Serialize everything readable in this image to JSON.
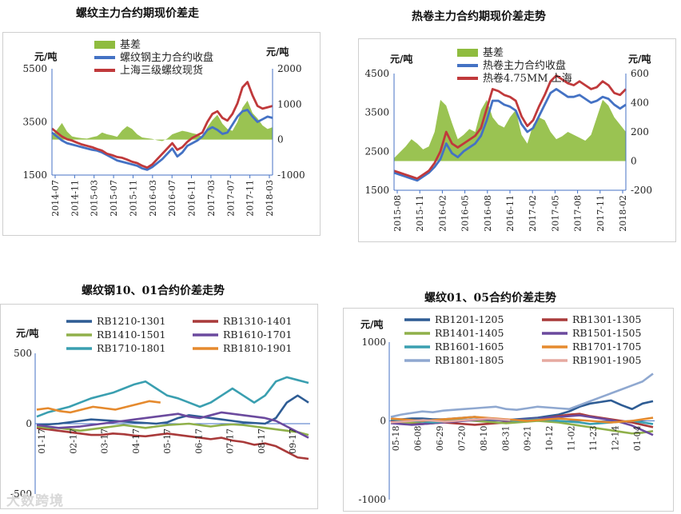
{
  "chart_data": [
    {
      "type": "line",
      "title": "螺纹主力合约期现价差走",
      "left_unit": "元/吨",
      "right_unit": "元/吨",
      "ylim": [
        1500,
        5500
      ],
      "yticks": [
        1500,
        3500,
        5500
      ],
      "y2lim": [
        -1000,
        2000
      ],
      "y2ticks": [
        -1000,
        0,
        1000,
        2000
      ],
      "xlabels": [
        "2014-07",
        "2014-11",
        "2015-03",
        "2015-07",
        "2015-11",
        "2016-03",
        "2016-07",
        "2016-11",
        "2017-03",
        "2017-07",
        "2017-11",
        "2018-03"
      ],
      "legend": [
        "基差",
        "螺纹钢主力合约收盘",
        "上海三级螺纹现货"
      ],
      "colors": [
        "#8fbc3f",
        "#4472c4",
        "#c0393b"
      ],
      "bar_series": {
        "name": "基差",
        "axis": "right",
        "values": [
          120,
          280,
          470,
          230,
          90,
          60,
          40,
          30,
          70,
          100,
          200,
          150,
          120,
          80,
          260,
          380,
          300,
          150,
          60,
          40,
          20,
          -20,
          -40,
          30,
          150,
          200,
          250,
          220,
          180,
          150,
          80,
          350,
          550,
          700,
          450,
          300,
          250,
          500,
          900,
          1100,
          750,
          600,
          400,
          300,
          350
        ]
      },
      "series": [
        {
          "name": "螺纹钢主力合约收盘",
          "axis": "left",
          "values": [
            3100,
            2950,
            2800,
            2700,
            2650,
            2600,
            2550,
            2500,
            2450,
            2420,
            2350,
            2250,
            2150,
            2050,
            2000,
            1950,
            1900,
            1850,
            1750,
            1700,
            1800,
            1950,
            2100,
            2300,
            2500,
            2200,
            2350,
            2600,
            2700,
            2800,
            2950,
            3200,
            3300,
            3200,
            3050,
            3100,
            3400,
            3700,
            3900,
            3950,
            3700,
            3500,
            3600,
            3700,
            3650
          ]
        },
        {
          "name": "上海三级螺纹现货",
          "axis": "left",
          "values": [
            3250,
            3100,
            2950,
            2850,
            2800,
            2720,
            2650,
            2600,
            2550,
            2480,
            2420,
            2300,
            2250,
            2180,
            2150,
            2080,
            2000,
            1950,
            1850,
            1780,
            1900,
            2100,
            2300,
            2500,
            2700,
            2450,
            2550,
            2750,
            2900,
            3000,
            3100,
            3500,
            3800,
            3900,
            3650,
            3550,
            3800,
            4200,
            4800,
            5000,
            4500,
            4100,
            4000,
            4050,
            4100
          ]
        }
      ]
    },
    {
      "type": "line",
      "title": "热卷主力合约期现价差走势",
      "left_unit": "元/吨",
      "right_unit": "元/吨",
      "ylim": [
        1500,
        4500
      ],
      "yticks": [
        1500,
        2500,
        3500,
        4500
      ],
      "y2lim": [
        -200,
        600
      ],
      "y2ticks": [
        -200,
        0,
        200,
        400,
        600
      ],
      "xlabels": [
        "2015-08",
        "2015-11",
        "2016-02",
        "2016-05",
        "2016-08",
        "2016-11",
        "2017-02",
        "2017-05",
        "2017-08",
        "2017-11",
        "2018-02"
      ],
      "legend": [
        "基差",
        "热卷主力合约收盘",
        "热卷4.75MM 上海"
      ],
      "colors": [
        "#8fbc3f",
        "#4472c4",
        "#c0393b"
      ],
      "bar_series": {
        "name": "基差",
        "axis": "right",
        "values": [
          20,
          60,
          100,
          150,
          120,
          80,
          100,
          200,
          420,
          380,
          260,
          150,
          180,
          220,
          200,
          350,
          420,
          300,
          250,
          230,
          300,
          350,
          180,
          120,
          250,
          300,
          280,
          200,
          150,
          170,
          200,
          180,
          160,
          140,
          180,
          300,
          420,
          380,
          300,
          250,
          200
        ]
      },
      "series": [
        {
          "name": "热卷主力合约收盘",
          "axis": "left",
          "values": [
            1950,
            1900,
            1850,
            1800,
            1750,
            1850,
            1950,
            2100,
            2300,
            2700,
            2450,
            2350,
            2500,
            2600,
            2700,
            2900,
            3300,
            3800,
            3800,
            3700,
            3650,
            3550,
            3200,
            3000,
            3100,
            3400,
            3700,
            4000,
            4100,
            4000,
            3900,
            3900,
            3950,
            3850,
            3750,
            3800,
            3900,
            3850,
            3700,
            3600,
            3700
          ]
        },
        {
          "name": "热卷4.75MM 上海",
          "axis": "left",
          "values": [
            2000,
            1950,
            1900,
            1850,
            1800,
            1900,
            2000,
            2200,
            2500,
            3000,
            2700,
            2600,
            2700,
            2800,
            2900,
            3100,
            3600,
            4100,
            4050,
            3950,
            3900,
            3800,
            3400,
            3150,
            3300,
            3650,
            3950,
            4300,
            4450,
            4350,
            4250,
            4200,
            4300,
            4200,
            4100,
            4150,
            4300,
            4200,
            4000,
            3950,
            4100
          ]
        }
      ]
    },
    {
      "type": "line",
      "title": "螺纹钢10、01合约价差走势",
      "unit": "元/吨",
      "ylim": [
        -500,
        500
      ],
      "yticks": [
        -500,
        0,
        500
      ],
      "xlabels": [
        "01-17",
        "02-17",
        "03-17",
        "04-17",
        "05-17",
        "06-17",
        "07-17",
        "08-17",
        "09-17"
      ],
      "series": [
        {
          "name": "RB1210-1301",
          "color": "#2e5c94",
          "values": [
            -10,
            -5,
            0,
            10,
            20,
            30,
            25,
            20,
            15,
            10,
            5,
            0,
            10,
            40,
            60,
            50,
            40,
            30,
            20,
            10,
            5,
            0,
            40,
            150,
            200,
            150
          ]
        },
        {
          "name": "RB1310-1401",
          "color": "#a93a3a",
          "values": [
            -30,
            -40,
            -50,
            -60,
            -70,
            -80,
            -80,
            -70,
            -75,
            -85,
            -90,
            -80,
            -70,
            -80,
            -90,
            -100,
            -110,
            -100,
            -120,
            -130,
            -150,
            -140,
            -160,
            -200,
            -240,
            -250
          ]
        },
        {
          "name": "RB1410-1501",
          "color": "#8fb04a",
          "values": [
            -20,
            -30,
            -30,
            -40,
            -50,
            -40,
            -30,
            -20,
            -10,
            -20,
            -30,
            -20,
            -10,
            -5,
            0,
            -10,
            -20,
            -10,
            -5,
            -10,
            -20,
            -30,
            -40,
            -50,
            -60,
            -80
          ]
        },
        {
          "name": "RB1610-1701",
          "color": "#6b4a9e",
          "values": [
            -10,
            -20,
            -30,
            -25,
            -20,
            -10,
            0,
            10,
            20,
            30,
            40,
            50,
            60,
            70,
            50,
            40,
            60,
            80,
            70,
            60,
            50,
            40,
            20,
            -20,
            -60,
            -100
          ]
        },
        {
          "name": "RB1710-1801",
          "color": "#3a9fb0",
          "values": [
            50,
            80,
            100,
            120,
            150,
            180,
            200,
            220,
            250,
            280,
            300,
            250,
            200,
            180,
            150,
            120,
            150,
            200,
            250,
            200,
            150,
            200,
            300,
            330,
            310,
            290
          ]
        },
        {
          "name": "RB1810-1901",
          "color": "#e58a2e",
          "values": [
            100,
            110,
            90,
            80,
            100,
            120,
            110,
            100,
            120,
            140,
            160,
            150
          ]
        }
      ]
    },
    {
      "type": "line",
      "title": "螺纹01、05合约价差走势",
      "unit": "元/吨",
      "ylim": [
        -1000,
        1000
      ],
      "yticks": [
        -1000,
        0,
        1000
      ],
      "xlabels": [
        "05-18",
        "06-08",
        "06-29",
        "07-20",
        "08-10",
        "08-31",
        "09-21",
        "10-12",
        "11-02",
        "11-23",
        "12-14",
        "01-04"
      ],
      "series": [
        {
          "name": "RB1201-1205",
          "color": "#2e5c94",
          "values": [
            10,
            20,
            30,
            30,
            20,
            20,
            30,
            40,
            50,
            30,
            20,
            10,
            20,
            30,
            40,
            60,
            80,
            120,
            180,
            220,
            240,
            260,
            200,
            150,
            220,
            250
          ]
        },
        {
          "name": "RB1301-1305",
          "color": "#a93a3a",
          "values": [
            -10,
            -20,
            -30,
            -40,
            -30,
            -20,
            -30,
            -40,
            -50,
            -40,
            -30,
            -20,
            -10,
            0,
            20,
            40,
            60,
            80,
            90,
            60,
            40,
            20,
            0,
            -20,
            -50,
            -80
          ]
        },
        {
          "name": "RB1401-1405",
          "color": "#8fb04a",
          "values": [
            -20,
            -30,
            -20,
            -10,
            0,
            10,
            20,
            10,
            0,
            -10,
            -20,
            -30,
            -20,
            -10,
            0,
            -10,
            -20,
            -40,
            -60,
            -80,
            -100,
            -120,
            -140,
            -160,
            -150,
            -130
          ]
        },
        {
          "name": "RB1501-1505",
          "color": "#6b4a9e",
          "values": [
            -30,
            -40,
            -50,
            -40,
            -30,
            -20,
            -10,
            0,
            10,
            20,
            10,
            0,
            10,
            20,
            30,
            40,
            50,
            60,
            70,
            50,
            30,
            10,
            -20,
            -60,
            -120,
            -180
          ]
        },
        {
          "name": "RB1601-1605",
          "color": "#3a9fb0",
          "values": [
            20,
            10,
            0,
            -10,
            -20,
            -10,
            0,
            10,
            20,
            30,
            20,
            10,
            0,
            10,
            20,
            10,
            0,
            -10,
            -20,
            -40,
            -30,
            -20,
            -10,
            0,
            -20,
            -40
          ]
        },
        {
          "name": "RB1701-1705",
          "color": "#e58a2e",
          "values": [
            30,
            20,
            10,
            0,
            10,
            20,
            30,
            40,
            50,
            40,
            30,
            20,
            10,
            0,
            10,
            20,
            30,
            20,
            10,
            0,
            -10,
            -20,
            -10,
            0,
            20,
            40
          ]
        },
        {
          "name": "RB1801-1805",
          "color": "#8fa8d0",
          "values": [
            50,
            80,
            100,
            120,
            110,
            130,
            140,
            150,
            160,
            170,
            180,
            150,
            140,
            160,
            180,
            170,
            160,
            150,
            200,
            250,
            300,
            350,
            400,
            450,
            500,
            600
          ]
        },
        {
          "name": "RB1901-1905",
          "color": "#e6a9a0",
          "values": [
            -20,
            -10,
            0,
            10,
            0,
            -10,
            0,
            10,
            20,
            30,
            20,
            10
          ]
        }
      ]
    }
  ],
  "watermark": "大数跨境"
}
